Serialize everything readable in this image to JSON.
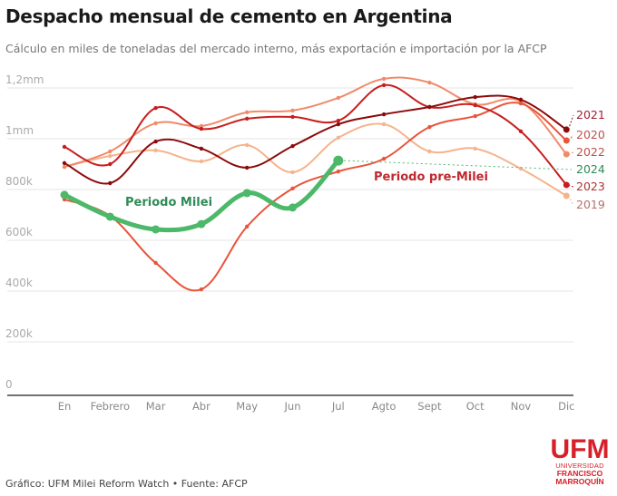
{
  "header": {
    "title": "Despacho mensual de cemento en Argentina",
    "subtitle": "Cálculo en miles de toneladas del mercado interno, más exportación e importación por la AFCP"
  },
  "footer": {
    "credit": "Gráfico: UFM Milei Reform Watch • Fuente: AFCP"
  },
  "logo": {
    "big": "UFM",
    "line1": "UNIVERSIDAD",
    "line2": "FRANCISCO",
    "line3": "MARROQUÍN",
    "color": "#d6202a"
  },
  "chart_data": {
    "type": "line",
    "title": "Despacho mensual de cemento en Argentina",
    "subtitle": "Cálculo en miles de toneladas del mercado interno, más exportación e importación por la AFCP",
    "xlabel": "",
    "ylabel": "",
    "categories": [
      "En",
      "Febrero",
      "Mar",
      "Abr",
      "May",
      "Jun",
      "Jul",
      "Agto",
      "Sept",
      "Oct",
      "Nov",
      "Dic"
    ],
    "ylim": [
      0,
      1200
    ],
    "yticks": [
      {
        "value": 0,
        "label": "0"
      },
      {
        "value": 200,
        "label": "200k"
      },
      {
        "value": 400,
        "label": "400k"
      },
      {
        "value": 600,
        "label": "600k"
      },
      {
        "value": 800,
        "label": "800k"
      },
      {
        "value": 1000,
        "label": "1mm"
      },
      {
        "value": 1200,
        "label": "1,2mm"
      }
    ],
    "grid": true,
    "legend": "right (inline labels at line ends)",
    "series": [
      {
        "name": "2019",
        "color": "#f5b38c",
        "label_color": "#b5706a",
        "values": [
          889,
          932,
          954,
          911,
          975,
          868,
          1004,
          1057,
          950,
          961,
          882,
          775
        ]
      },
      {
        "name": "2022",
        "color": "#f08a6a",
        "label_color": "#c0504a",
        "values": [
          889,
          950,
          1061,
          1050,
          1104,
          1111,
          1161,
          1236,
          1221,
          1136,
          1146,
          939
        ]
      },
      {
        "name": "2020",
        "color": "#e8553a",
        "label_color": "#c0504a",
        "values": [
          761,
          696,
          511,
          407,
          654,
          804,
          871,
          921,
          1046,
          1089,
          1139,
          993
        ]
      },
      {
        "name": "2023",
        "color": "#c81e1e",
        "label_color": "#b23030",
        "values": [
          968,
          900,
          1121,
          1039,
          1079,
          1086,
          1071,
          1211,
          1125,
          1132,
          1029,
          818
        ]
      },
      {
        "name": "2021",
        "color": "#8b0a0a",
        "label_color": "#a02030",
        "values": [
          904,
          825,
          989,
          961,
          886,
          971,
          1057,
          1096,
          1125,
          1164,
          1154,
          1036
        ]
      },
      {
        "name": "2024",
        "color": "#4cb86a",
        "label_color": "#2e8b57",
        "values": [
          779,
          693,
          643,
          664,
          786,
          729,
          914
        ],
        "emphasis": true
      }
    ],
    "legend_order": [
      "2021",
      "2020",
      "2022",
      "2024",
      "2023",
      "2019"
    ],
    "annotations": [
      {
        "text": "Periodo Milei",
        "color": "#2e8b57",
        "near": "2024 Feb–Abr"
      },
      {
        "text": "Periodo pre-Milei",
        "color": "#c0282e",
        "near": "Agto–Sept"
      }
    ]
  }
}
